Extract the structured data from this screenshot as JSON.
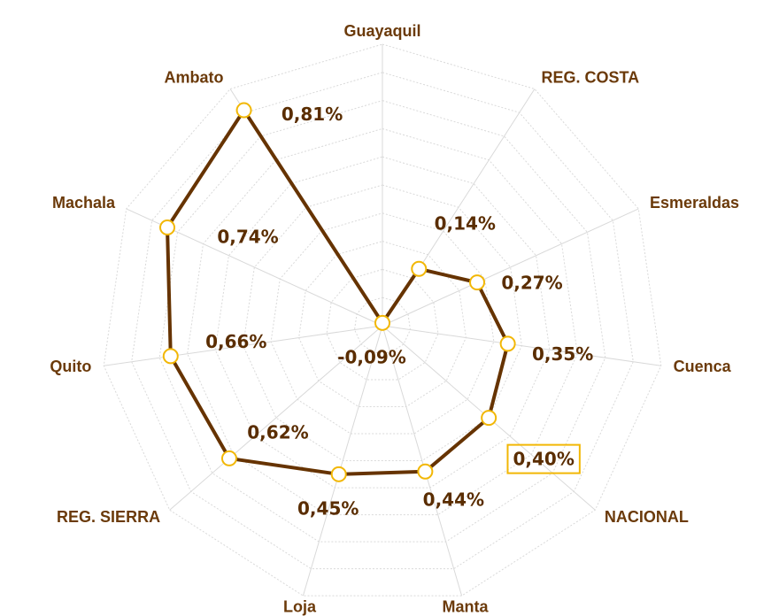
{
  "chart_data": {
    "type": "radar",
    "categories": [
      "Guayaquil",
      "REG. COSTA",
      "Esmeraldas",
      "Cuenca",
      "NACIONAL",
      "Manta",
      "Loja",
      "REG. SIERRA",
      "Quito",
      "Machala",
      "Ambato"
    ],
    "series": [
      {
        "values": [
          -0.09,
          0.14,
          0.27,
          0.35,
          0.4,
          0.44,
          0.45,
          0.62,
          0.66,
          0.74,
          0.81
        ],
        "value_labels": [
          "-0,09%",
          "0,14%",
          "0,27%",
          "0,35%",
          "0,40%",
          "0,44%",
          "0,45%",
          "0,62%",
          "0,66%",
          "0,74%",
          "0,81%"
        ],
        "color": "#663300",
        "marker_color": "#f2b705"
      }
    ],
    "ylim": [
      -0.1,
      0.9
    ],
    "yticks": [
      -0.1,
      0,
      0.1,
      0.2,
      0.3,
      0.4,
      0.5,
      0.6,
      0.7,
      0.8,
      0.9
    ],
    "grid": true,
    "highlight": "NACIONAL"
  }
}
